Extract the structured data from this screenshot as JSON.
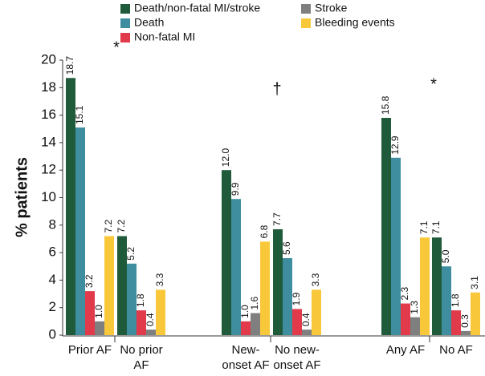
{
  "chart_data": {
    "type": "bar",
    "y_label": "% patients",
    "categories": [
      "Prior AF",
      "No prior\nAF",
      "New-\nonset AF",
      "No new-\nonset AF",
      "Any AF",
      "No AF"
    ],
    "series": [
      {
        "name": "Death/non-fatal MI/stroke",
        "color": "#1f5a3b",
        "values": [
          18.7,
          7.2,
          12.0,
          7.7,
          15.8,
          7.1
        ],
        "value_labels": [
          "18.7",
          "7.2",
          "12.0",
          "7.7",
          "15.8",
          "7.1"
        ]
      },
      {
        "name": "Death",
        "color": "#3f8e9f",
        "values": [
          15.1,
          5.2,
          9.9,
          5.6,
          12.9,
          5.0
        ],
        "value_labels": [
          "15.1",
          "5.2",
          "9.9",
          "5.6",
          "12.9",
          "5.0"
        ]
      },
      {
        "name": "Non-fatal MI",
        "color": "#e13a4b",
        "values": [
          3.2,
          1.8,
          1.0,
          1.9,
          2.3,
          1.8
        ],
        "value_labels": [
          "3.2",
          "1.8",
          "1.0",
          "1.9",
          "2.3",
          "1.8"
        ]
      },
      {
        "name": "Stroke",
        "color": "#7f7f7f",
        "values": [
          1.0,
          0.4,
          1.6,
          0.4,
          1.3,
          0.3
        ],
        "value_labels": [
          "1.0",
          "0.4",
          "1.6",
          "0.4",
          "1.3",
          "0.3"
        ]
      },
      {
        "name": "Bleeding events",
        "color": "#f9c83a",
        "values": [
          7.2,
          3.3,
          6.8,
          3.3,
          7.1,
          3.1
        ],
        "value_labels": [
          "7.2",
          "3.3",
          "6.8",
          "3.3",
          "7.1",
          "3.1"
        ]
      }
    ],
    "annotations": [
      "*",
      "†",
      "*"
    ],
    "ylim": [
      0,
      20
    ],
    "yticks": [
      0,
      2,
      4,
      6,
      8,
      10,
      12,
      14,
      16,
      18,
      20
    ],
    "grid": false
  }
}
